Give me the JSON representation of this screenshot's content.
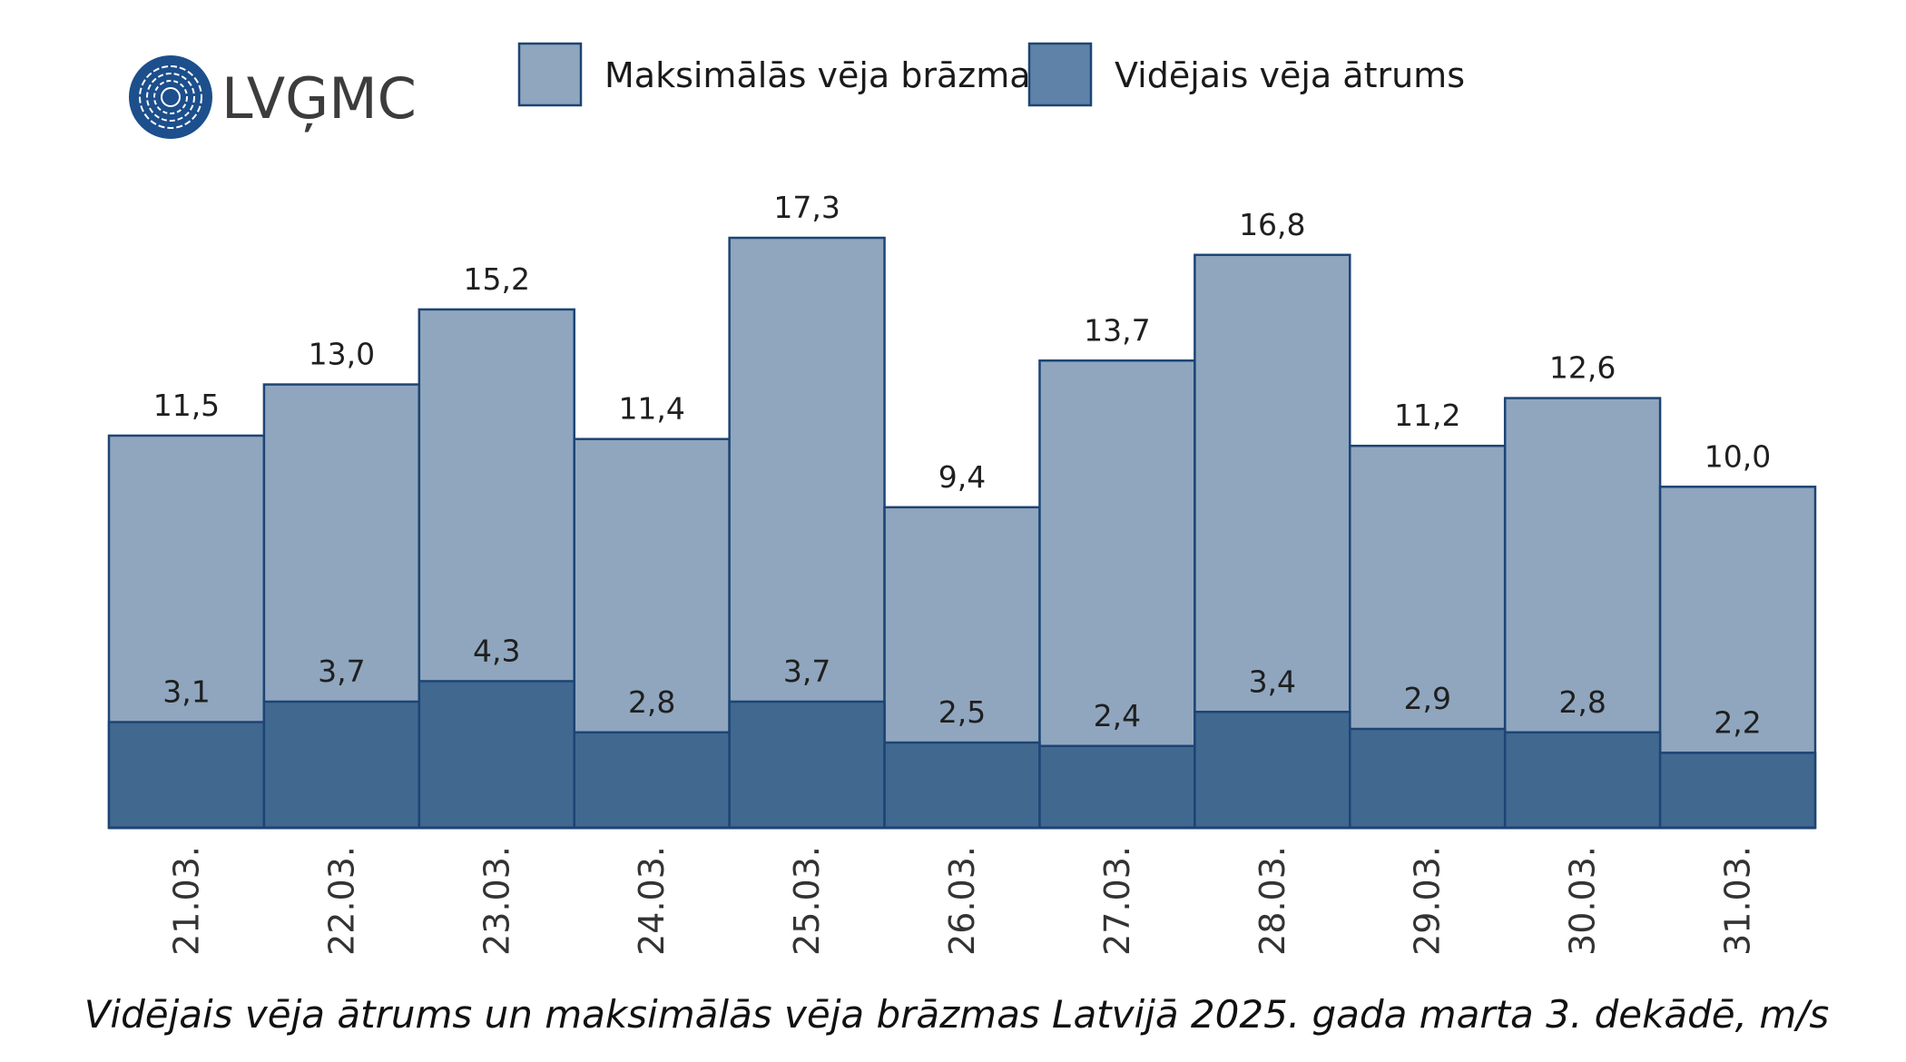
{
  "logo": {
    "text": "LVĢMC",
    "icon": "lvgmc-wave-logo-icon"
  },
  "colors": {
    "gust_fill": "#8fa6be",
    "average_fill": "#41688f",
    "bar_stroke": "#1d4474",
    "logo_circle": "#1c4f8c",
    "logo_text": "#3c3c3c"
  },
  "chart_data": {
    "type": "bar",
    "categories": [
      "21.03.",
      "22.03.",
      "23.03.",
      "24.03.",
      "25.03.",
      "26.03.",
      "27.03.",
      "28.03.",
      "29.03.",
      "30.03.",
      "31.03."
    ],
    "series": [
      {
        "name": "Maksimālās vēja brāzmas",
        "values": [
          11.5,
          13.0,
          15.2,
          11.4,
          17.3,
          9.4,
          13.7,
          16.8,
          11.2,
          12.6,
          10.0
        ],
        "labels": [
          "11,5",
          "13,0",
          "15,2",
          "11,4",
          "17,3",
          "9,4",
          "13,7",
          "16,8",
          "11,2",
          "12,6",
          "10,0"
        ]
      },
      {
        "name": "Vidējais vēja ātrums",
        "values": [
          3.1,
          3.7,
          4.3,
          2.8,
          3.7,
          2.5,
          2.4,
          3.4,
          2.9,
          2.8,
          2.2
        ],
        "labels": [
          "3,1",
          "3,7",
          "4,3",
          "2,8",
          "3,7",
          "2,5",
          "2,4",
          "3,4",
          "2,9",
          "2,8",
          "2,2"
        ]
      }
    ],
    "overlap": true,
    "ylim": [
      0,
      17.3
    ],
    "grid": false,
    "legend_position": "top",
    "xlabel": "",
    "ylabel": "",
    "caption": "Vidējais vēja ātrums un maksimālās vēja brāzmas Latvijā 2025. gada marta 3. dekādē, m/s"
  }
}
